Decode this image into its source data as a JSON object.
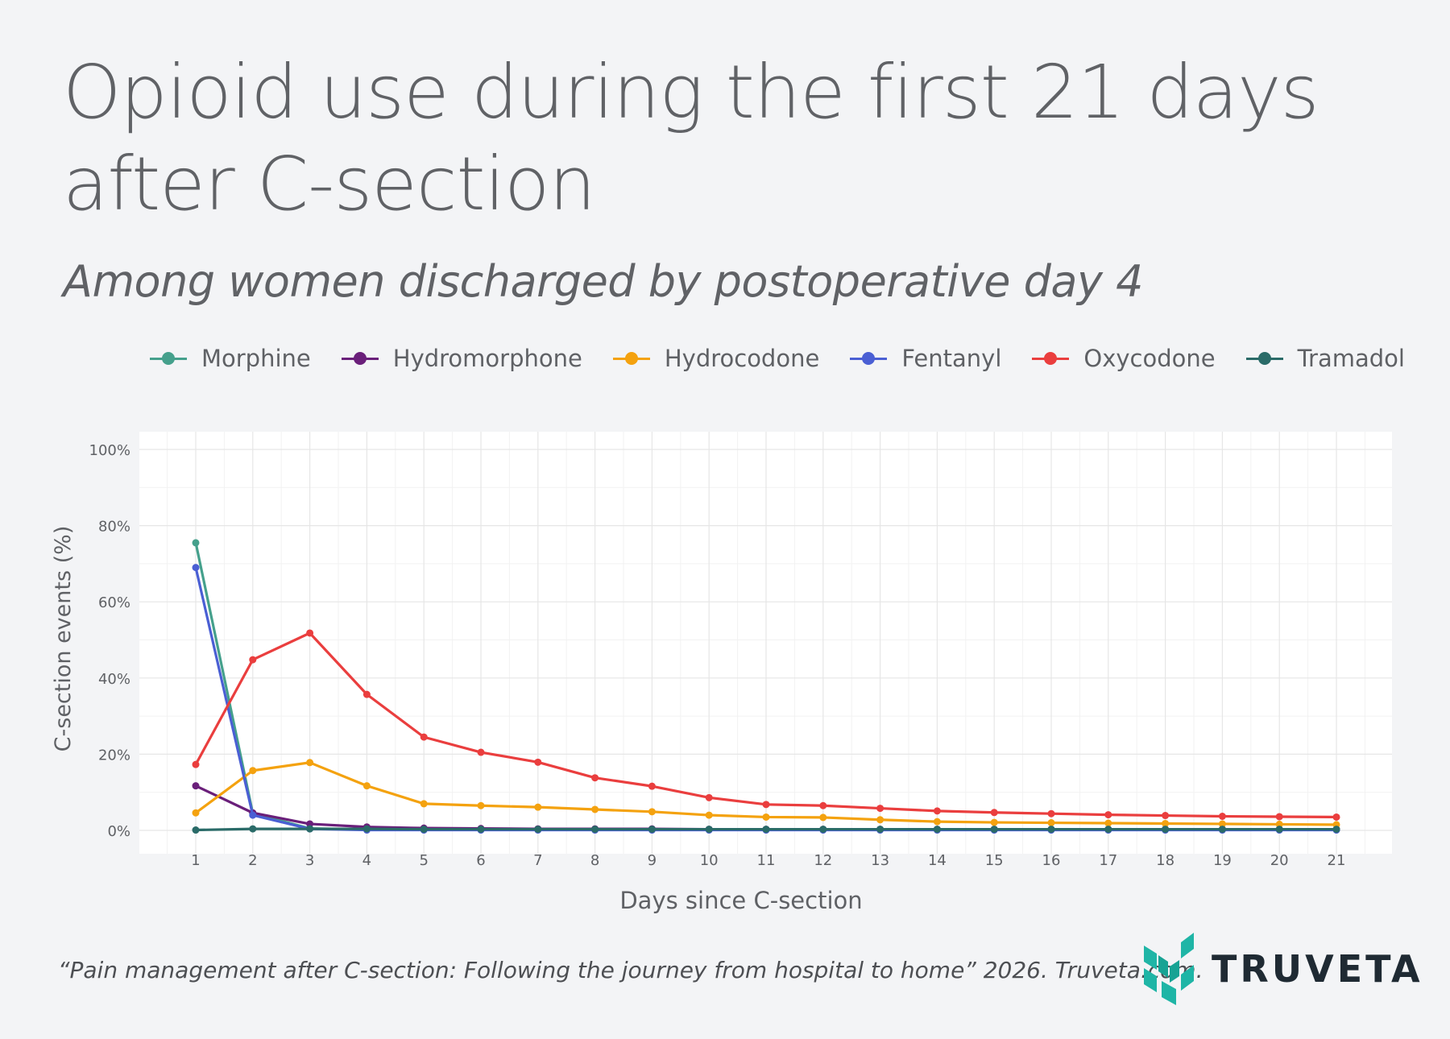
{
  "header": {
    "title": "Opioid use during the first 21 days after C-section",
    "subtitle": "Among women discharged by postoperative day 4"
  },
  "footer": {
    "citation": "“Pain management after C-section: Following the journey from hospital to home” 2026. Truveta.com.",
    "logo_text": "TRUVETA"
  },
  "chart_data": {
    "type": "line",
    "xlabel": "Days since C-section",
    "ylabel": "C-section events (%)",
    "x": [
      1,
      2,
      3,
      4,
      5,
      6,
      7,
      8,
      9,
      10,
      11,
      12,
      13,
      14,
      15,
      16,
      17,
      18,
      19,
      20,
      21
    ],
    "ylim": [
      0,
      100
    ],
    "yticks": [
      "0%",
      "20%",
      "40%",
      "60%",
      "80%",
      "100%"
    ],
    "grid": true,
    "legend_position": "top",
    "series": [
      {
        "name": "Morphine",
        "color": "#45a08c",
        "values": [
          75.5,
          4.5,
          0.5,
          0.3,
          0.2,
          0.2,
          0.2,
          0.2,
          0.2,
          0.2,
          0.2,
          0.2,
          0.2,
          0.2,
          0.2,
          0.2,
          0.2,
          0.2,
          0.2,
          0.2,
          0.2
        ]
      },
      {
        "name": "Hydromorphone",
        "color": "#6a1f7a",
        "values": [
          11.7,
          4.6,
          1.7,
          0.9,
          0.6,
          0.5,
          0.4,
          0.4,
          0.4,
          0.3,
          0.3,
          0.3,
          0.3,
          0.3,
          0.3,
          0.3,
          0.3,
          0.3,
          0.3,
          0.3,
          0.3
        ]
      },
      {
        "name": "Hydrocodone",
        "color": "#f4a20f",
        "values": [
          4.6,
          15.7,
          17.8,
          11.7,
          7.0,
          6.5,
          6.1,
          5.5,
          4.9,
          4.0,
          3.5,
          3.4,
          2.8,
          2.3,
          2.1,
          2.0,
          1.9,
          1.8,
          1.7,
          1.6,
          1.5
        ]
      },
      {
        "name": "Fentanyl",
        "color": "#4a5fd4",
        "values": [
          69.0,
          4.0,
          0.4,
          0.1,
          0.1,
          0.1,
          0.1,
          0.1,
          0.1,
          0.1,
          0.1,
          0.1,
          0.1,
          0.1,
          0.1,
          0.1,
          0.1,
          0.1,
          0.1,
          0.1,
          0.1
        ]
      },
      {
        "name": "Oxycodone",
        "color": "#ea3e3e",
        "values": [
          17.3,
          44.8,
          51.8,
          35.7,
          24.5,
          20.5,
          17.9,
          13.8,
          11.6,
          8.6,
          6.8,
          6.5,
          5.8,
          5.1,
          4.7,
          4.4,
          4.1,
          3.9,
          3.7,
          3.6,
          3.5
        ]
      },
      {
        "name": "Tramadol",
        "color": "#2a6b68",
        "values": [
          0.1,
          0.4,
          0.4,
          0.4,
          0.3,
          0.3,
          0.3,
          0.3,
          0.3,
          0.3,
          0.3,
          0.3,
          0.3,
          0.3,
          0.3,
          0.3,
          0.3,
          0.3,
          0.3,
          0.3,
          0.3
        ]
      }
    ]
  }
}
